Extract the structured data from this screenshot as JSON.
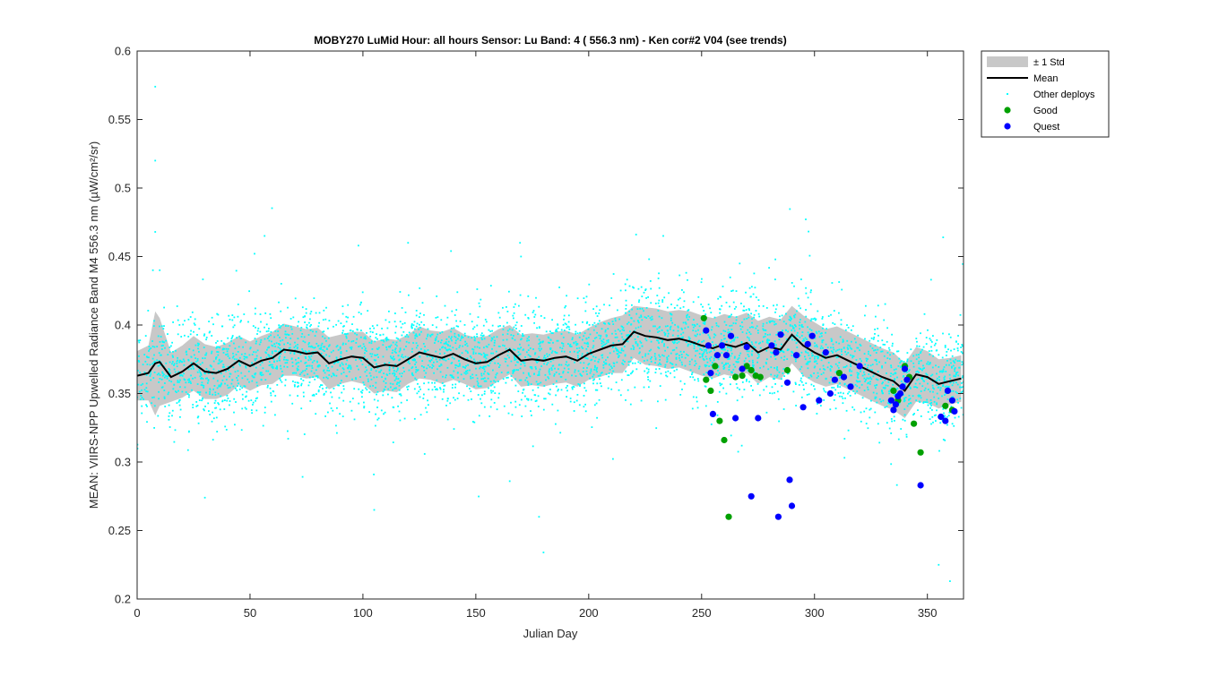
{
  "chart_data": {
    "type": "scatter",
    "title": "MOBY270   LuMid  Hour: all hours  Sensor: Lu Band: 4 ( 556.3 nm)  - Ken cor#2 V04 (see trends)",
    "xlabel": "Julian Day",
    "ylabel": "MEAN: VIIRS-NPP Upwelled Radiance Band M4 556.3 nm (µW/cm²/sr)",
    "xlim": [
      0,
      366
    ],
    "ylim": [
      0.2,
      0.6
    ],
    "xticks": [
      0,
      50,
      100,
      150,
      200,
      250,
      300,
      350
    ],
    "yticks": [
      0.2,
      0.25,
      0.3,
      0.35,
      0.4,
      0.45,
      0.5,
      0.55,
      0.6
    ],
    "ytick_labels": [
      "0.2",
      "0.25",
      "0.3",
      "0.35",
      "0.4",
      "0.45",
      "0.5",
      "0.55",
      "0.6"
    ],
    "grid": false,
    "legend_position": "outside-top-right",
    "legend": [
      "± 1 Std",
      "Mean",
      "Other deploys",
      "Good",
      "Quest"
    ],
    "colors": {
      "std_band": "#c8c8c8",
      "mean": "#000000",
      "other": "#00ffff",
      "good": "#00a000",
      "quest": "#0000ff"
    },
    "series": [
      {
        "name": "Mean",
        "x": [
          0,
          5,
          8,
          10,
          15,
          20,
          25,
          30,
          35,
          40,
          45,
          50,
          55,
          60,
          65,
          70,
          75,
          80,
          85,
          90,
          95,
          100,
          105,
          110,
          115,
          120,
          125,
          130,
          135,
          140,
          145,
          150,
          155,
          160,
          165,
          170,
          175,
          180,
          185,
          190,
          195,
          200,
          205,
          210,
          215,
          220,
          225,
          230,
          235,
          240,
          245,
          250,
          255,
          260,
          265,
          270,
          275,
          280,
          285,
          290,
          295,
          300,
          305,
          310,
          315,
          320,
          325,
          330,
          335,
          340,
          345,
          350,
          355,
          360,
          365
        ],
        "y": [
          0.363,
          0.365,
          0.372,
          0.373,
          0.362,
          0.366,
          0.372,
          0.366,
          0.365,
          0.368,
          0.374,
          0.37,
          0.374,
          0.376,
          0.382,
          0.381,
          0.379,
          0.38,
          0.372,
          0.375,
          0.377,
          0.376,
          0.369,
          0.371,
          0.37,
          0.375,
          0.38,
          0.378,
          0.376,
          0.379,
          0.375,
          0.372,
          0.373,
          0.378,
          0.382,
          0.374,
          0.375,
          0.374,
          0.376,
          0.377,
          0.374,
          0.379,
          0.382,
          0.385,
          0.386,
          0.395,
          0.392,
          0.391,
          0.389,
          0.39,
          0.388,
          0.385,
          0.383,
          0.386,
          0.384,
          0.387,
          0.38,
          0.384,
          0.382,
          0.393,
          0.385,
          0.38,
          0.376,
          0.378,
          0.374,
          0.37,
          0.366,
          0.362,
          0.359,
          0.352,
          0.364,
          0.362,
          0.357,
          0.359,
          0.361
        ]
      },
      {
        "name": "± 1 Std",
        "x": [
          0,
          5,
          8,
          10,
          15,
          20,
          25,
          30,
          35,
          40,
          45,
          50,
          55,
          60,
          65,
          70,
          75,
          80,
          85,
          90,
          95,
          100,
          105,
          110,
          115,
          120,
          125,
          130,
          135,
          140,
          145,
          150,
          155,
          160,
          165,
          170,
          175,
          180,
          185,
          190,
          195,
          200,
          205,
          210,
          215,
          220,
          225,
          230,
          235,
          240,
          245,
          250,
          255,
          260,
          265,
          270,
          275,
          280,
          285,
          290,
          295,
          300,
          305,
          310,
          315,
          320,
          325,
          330,
          335,
          340,
          345,
          350,
          355,
          360,
          365
        ],
        "upper": [
          0.381,
          0.385,
          0.41,
          0.405,
          0.38,
          0.385,
          0.392,
          0.386,
          0.384,
          0.387,
          0.392,
          0.388,
          0.392,
          0.395,
          0.401,
          0.399,
          0.397,
          0.398,
          0.391,
          0.393,
          0.395,
          0.395,
          0.388,
          0.39,
          0.389,
          0.393,
          0.399,
          0.396,
          0.395,
          0.398,
          0.393,
          0.391,
          0.392,
          0.397,
          0.4,
          0.393,
          0.394,
          0.393,
          0.395,
          0.396,
          0.393,
          0.398,
          0.402,
          0.405,
          0.407,
          0.414,
          0.413,
          0.412,
          0.41,
          0.411,
          0.41,
          0.407,
          0.405,
          0.408,
          0.406,
          0.409,
          0.403,
          0.406,
          0.404,
          0.414,
          0.407,
          0.402,
          0.397,
          0.399,
          0.395,
          0.391,
          0.387,
          0.383,
          0.38,
          0.372,
          0.384,
          0.381,
          0.375,
          0.376,
          0.378
        ],
        "lower": [
          0.345,
          0.345,
          0.334,
          0.341,
          0.344,
          0.347,
          0.352,
          0.346,
          0.346,
          0.349,
          0.356,
          0.352,
          0.356,
          0.357,
          0.363,
          0.363,
          0.361,
          0.362,
          0.353,
          0.357,
          0.359,
          0.357,
          0.35,
          0.352,
          0.351,
          0.357,
          0.361,
          0.36,
          0.357,
          0.36,
          0.357,
          0.353,
          0.354,
          0.359,
          0.364,
          0.355,
          0.356,
          0.355,
          0.357,
          0.358,
          0.355,
          0.36,
          0.362,
          0.365,
          0.365,
          0.376,
          0.371,
          0.37,
          0.368,
          0.369,
          0.366,
          0.363,
          0.361,
          0.364,
          0.362,
          0.365,
          0.357,
          0.362,
          0.36,
          0.372,
          0.363,
          0.358,
          0.355,
          0.357,
          0.353,
          0.349,
          0.345,
          0.341,
          0.338,
          0.332,
          0.344,
          0.343,
          0.339,
          0.342,
          0.344
        ]
      },
      {
        "name": "Good",
        "x": [
          251,
          252,
          254,
          256,
          258,
          260,
          262,
          265,
          268,
          270,
          272,
          274,
          276,
          288,
          311,
          335,
          337,
          340,
          342,
          344,
          347,
          358,
          361
        ],
        "y": [
          0.405,
          0.36,
          0.352,
          0.37,
          0.33,
          0.316,
          0.26,
          0.362,
          0.363,
          0.37,
          0.367,
          0.363,
          0.362,
          0.367,
          0.365,
          0.352,
          0.345,
          0.37,
          0.362,
          0.328,
          0.307,
          0.341,
          0.338
        ]
      },
      {
        "name": "Quest",
        "x": [
          252,
          253,
          254,
          255,
          257,
          259,
          261,
          263,
          265,
          268,
          270,
          272,
          275,
          281,
          283,
          284,
          285,
          288,
          289,
          290,
          292,
          295,
          297,
          299,
          302,
          305,
          307,
          309,
          313,
          316,
          320,
          334,
          335,
          336,
          337,
          338,
          339,
          340,
          341,
          347,
          356,
          358,
          359,
          361,
          362
        ],
        "y": [
          0.396,
          0.385,
          0.365,
          0.335,
          0.378,
          0.385,
          0.378,
          0.392,
          0.332,
          0.368,
          0.384,
          0.275,
          0.332,
          0.385,
          0.38,
          0.26,
          0.393,
          0.358,
          0.287,
          0.268,
          0.378,
          0.34,
          0.386,
          0.392,
          0.345,
          0.38,
          0.35,
          0.36,
          0.362,
          0.355,
          0.37,
          0.345,
          0.338,
          0.342,
          0.348,
          0.35,
          0.355,
          0.368,
          0.36,
          0.283,
          0.333,
          0.33,
          0.352,
          0.345,
          0.337
        ]
      },
      {
        "name": "Other deploys",
        "generated": true,
        "n": 4200,
        "spread": 0.018,
        "outliers": [
          [
            8,
            0.574
          ],
          [
            8,
            0.52
          ],
          [
            8,
            0.468
          ],
          [
            7,
            0.44
          ],
          [
            52,
            0.452
          ],
          [
            98,
            0.458
          ],
          [
            120,
            0.46
          ],
          [
            139,
            0.454
          ],
          [
            178,
            0.26
          ],
          [
            180,
            0.234
          ],
          [
            221,
            0.466
          ],
          [
            233,
            0.465
          ],
          [
            355,
            0.225
          ],
          [
            360,
            0.213
          ],
          [
            357,
            0.464
          ],
          [
            30,
            0.274
          ],
          [
            105,
            0.265
          ],
          [
            165,
            0.286
          ],
          [
            10,
            0.44
          ],
          [
            170,
            0.45
          ]
        ]
      }
    ]
  }
}
